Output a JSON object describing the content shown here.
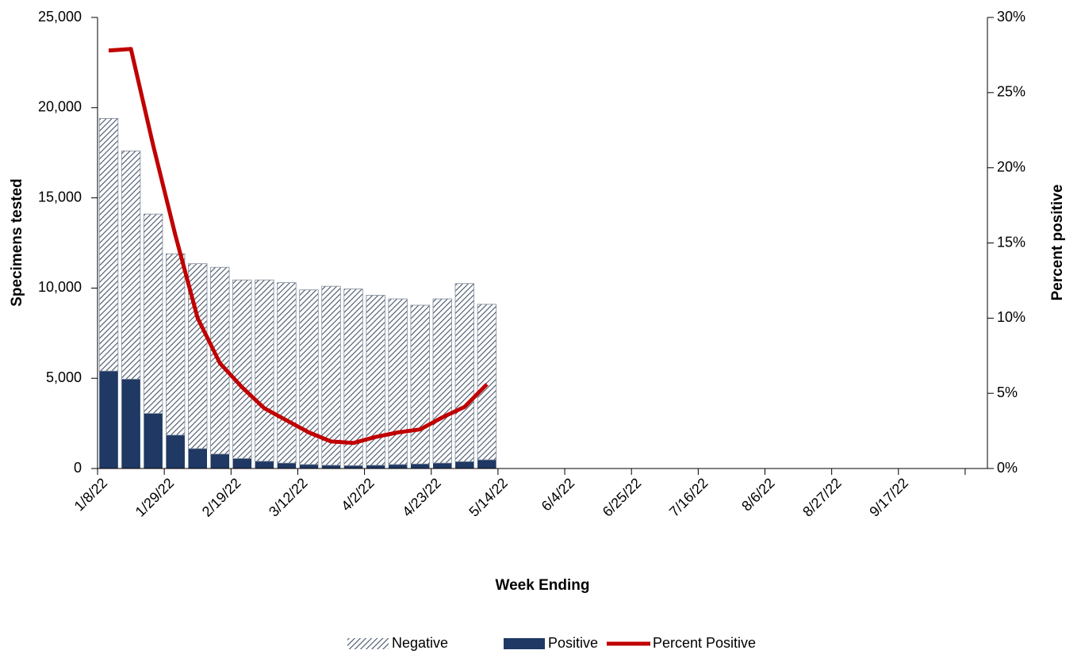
{
  "chart_data": {
    "type": "bar-line",
    "x_label": "Week Ending",
    "y_label": "Specimens tested",
    "y2_label": "Percent positive",
    "categories": [
      "1/8/22",
      null,
      null,
      "1/29/22",
      null,
      null,
      "2/19/22",
      null,
      null,
      "3/12/22",
      null,
      null,
      "4/2/22",
      null,
      null,
      "4/23/22",
      null,
      null,
      "5/14/22",
      null,
      null,
      "6/4/22",
      null,
      null,
      "6/25/22",
      null,
      null,
      "7/16/22",
      null,
      null,
      "8/6/22",
      null,
      null,
      "8/27/22",
      null,
      null,
      "9/17/22",
      null,
      null,
      null
    ],
    "series": [
      {
        "name": "Negative",
        "color": "#44546a",
        "hatch": true,
        "stack": true,
        "values": [
          14000,
          12650,
          11050,
          10050,
          10250,
          10350,
          9900,
          10050,
          10000,
          9680,
          9920,
          9790,
          9420,
          9180,
          8800,
          9100,
          9870,
          8620,
          null,
          null,
          null,
          null,
          null,
          null,
          null,
          null,
          null,
          null,
          null,
          null,
          null,
          null,
          null,
          null,
          null,
          null,
          null,
          null,
          null,
          null
        ]
      },
      {
        "name": "Positive",
        "color": "#1f3864",
        "stack": true,
        "values": [
          5400,
          4950,
          3050,
          1850,
          1100,
          800,
          550,
          400,
          300,
          220,
          180,
          160,
          180,
          220,
          250,
          300,
          380,
          480,
          null,
          null,
          null,
          null,
          null,
          null,
          null,
          null,
          null,
          null,
          null,
          null,
          null,
          null,
          null,
          null,
          null,
          null,
          null,
          null,
          null,
          null
        ]
      },
      {
        "name": "Percent Positive",
        "color": "#c00000",
        "axis": "y2",
        "line": true,
        "values": [
          27.8,
          27.9,
          21.5,
          15.5,
          10.0,
          7.0,
          5.4,
          4.0,
          3.2,
          2.4,
          1.8,
          1.7,
          2.1,
          2.4,
          2.6,
          3.4,
          4.1,
          5.6,
          null,
          null,
          null,
          null,
          null,
          null,
          null,
          null,
          null,
          null,
          null,
          null,
          null,
          null,
          null,
          null,
          null,
          null,
          null,
          null,
          null,
          null
        ]
      }
    ],
    "ylim": [
      0,
      25000
    ],
    "yticks": [
      0,
      {
        "value": 5000,
        "label": "5,000"
      },
      {
        "value": 10000,
        "label": "10,000"
      },
      {
        "value": 15000,
        "label": "15,000"
      },
      {
        "value": 20000,
        "label": "20,000"
      },
      {
        "value": 25000,
        "label": "25,000"
      }
    ],
    "y2lim": [
      0,
      30
    ],
    "y2ticks": [
      {
        "value": 0,
        "label": "0%"
      },
      {
        "value": 5,
        "label": "5%"
      },
      {
        "value": 10,
        "label": "10%"
      },
      {
        "value": 15,
        "label": "15%"
      },
      {
        "value": 20,
        "label": "20%"
      },
      {
        "value": 25,
        "label": "25%"
      },
      {
        "value": 30,
        "label": "30%"
      }
    ],
    "legend": "bottom"
  }
}
